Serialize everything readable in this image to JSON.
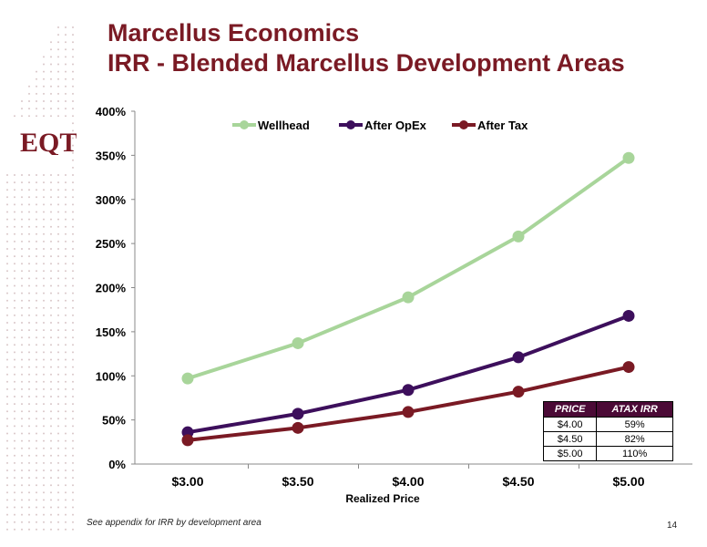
{
  "slide": {
    "title_line1": "Marcellus Economics",
    "title_line2": "IRR - Blended Marcellus Development Areas",
    "logo_text": "EQT",
    "footnote": "See appendix for IRR by development area",
    "page_number": "14"
  },
  "colors": {
    "title": "#7a1a24",
    "wellhead": "#a8d59a",
    "after_opex": "#3d0f5c",
    "after_tax": "#7a1a24",
    "table_header_bg": "#4b0a36"
  },
  "chart_data": {
    "type": "line",
    "categories": [
      "$3.00",
      "$3.50",
      "$4.00",
      "$4.50",
      "$5.00"
    ],
    "series": [
      {
        "name": "Wellhead",
        "values": [
          97,
          137,
          189,
          258,
          347
        ],
        "color": "#a8d59a"
      },
      {
        "name": "After OpEx",
        "values": [
          36,
          57,
          84,
          121,
          168
        ],
        "color": "#3d0f5c"
      },
      {
        "name": "After Tax",
        "values": [
          27,
          41,
          59,
          82,
          110
        ],
        "color": "#7a1a24"
      }
    ],
    "xlabel": "Realized Price",
    "ylabel": "",
    "ylim": [
      0,
      400
    ],
    "yticks": [
      "0%",
      "50%",
      "100%",
      "150%",
      "200%",
      "250%",
      "300%",
      "350%",
      "400%"
    ],
    "grid": false,
    "legend_position": "top"
  },
  "table": {
    "headers": [
      "PRICE",
      "ATAX IRR"
    ],
    "rows": [
      [
        "$4.00",
        "59%"
      ],
      [
        "$4.50",
        "82%"
      ],
      [
        "$5.00",
        "110%"
      ]
    ]
  }
}
